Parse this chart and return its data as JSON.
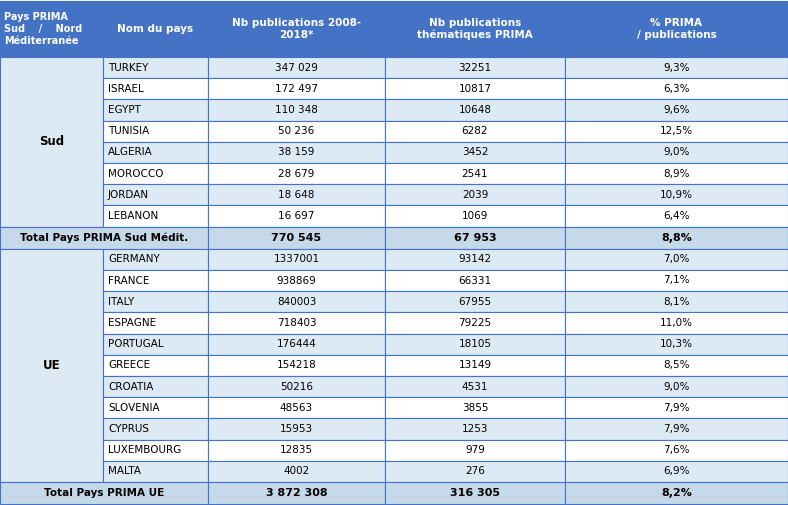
{
  "header_col1": "Pays PRIMA\nSud    /    Nord\nMéditerranée",
  "header_col2": "Nom du pays",
  "header_col3": "Nb publications 2008-\n2018*",
  "header_col4": "Nb publications\nthématiques PRIMA",
  "header_col5": "% PRIMA\n/ publications",
  "header_bg": "#4472C4",
  "header_text_color": "#FFFFFF",
  "row_bg_light": "#DDEAF4",
  "row_bg_white": "#FFFFFF",
  "total_bg": "#C5D9E8",
  "border_color": "#4472C4",
  "group1_label": "Sud",
  "group2_label": "UE",
  "rows_sud": [
    [
      "TURKEY",
      "347 029",
      "32251",
      "9,3%"
    ],
    [
      "ISRAEL",
      "172 497",
      "10817",
      "6,3%"
    ],
    [
      "EGYPT",
      "110 348",
      "10648",
      "9,6%"
    ],
    [
      "TUNISIA",
      "50 236",
      "6282",
      "12,5%"
    ],
    [
      "ALGERIA",
      "38 159",
      "3452",
      "9,0%"
    ],
    [
      "MOROCCO",
      "28 679",
      "2541",
      "8,9%"
    ],
    [
      "JORDAN",
      "18 648",
      "2039",
      "10,9%"
    ],
    [
      "LEBANON",
      "16 697",
      "1069",
      "6,4%"
    ]
  ],
  "total_sud_label": "Total Pays PRIMA Sud Médit.",
  "total_sud_values": [
    "770 545",
    "67 953",
    "8,8%"
  ],
  "rows_ue": [
    [
      "GERMANY",
      "1337001",
      "93142",
      "7,0%"
    ],
    [
      "FRANCE",
      "938869",
      "66331",
      "7,1%"
    ],
    [
      "ITALY",
      "840003",
      "67955",
      "8,1%"
    ],
    [
      "ESPAGNE",
      "718403",
      "79225",
      "11,0%"
    ],
    [
      "PORTUGAL",
      "176444",
      "18105",
      "10,3%"
    ],
    [
      "GREECE",
      "154218",
      "13149",
      "8,5%"
    ],
    [
      "CROATIA",
      "50216",
      "4531",
      "9,0%"
    ],
    [
      "SLOVENIA",
      "48563",
      "3855",
      "7,9%"
    ],
    [
      "CYPRUS",
      "15953",
      "1253",
      "7,9%"
    ],
    [
      "LUXEMBOURG",
      "12835",
      "979",
      "7,6%"
    ],
    [
      "MALTA",
      "4002",
      "276",
      "6,9%"
    ]
  ],
  "total_ue_label": "Total Pays PRIMA UE",
  "total_ue_values": [
    "3 872 308",
    "316 305",
    "8,2%"
  ],
  "figsize": [
    7.88,
    5.05
  ],
  "dpi": 100
}
